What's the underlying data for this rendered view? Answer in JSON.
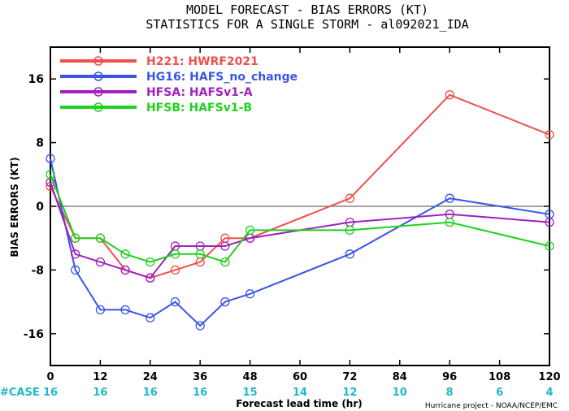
{
  "chart_data": {
    "type": "line",
    "title": "MODEL FORECAST - BIAS ERRORS (KT)",
    "subtitle": "STATISTICS FOR A SINGLE STORM - al092021_IDA",
    "xlabel": "Forecast lead time (hr)",
    "ylabel": "BIAS ERRORS (KT)",
    "xlim": [
      0,
      120
    ],
    "ylim": [
      -20,
      20
    ],
    "x_ticks": [
      0,
      12,
      24,
      36,
      48,
      60,
      72,
      84,
      96,
      108,
      120
    ],
    "y_ticks": [
      -16,
      -8,
      0,
      8,
      16
    ],
    "grid": false,
    "zero_line": true,
    "legend_position": "top-left",
    "case_label": "#CASE",
    "case_counts": [
      {
        "x": 0,
        "n": "16"
      },
      {
        "x": 12,
        "n": "16"
      },
      {
        "x": 24,
        "n": "16"
      },
      {
        "x": 36,
        "n": "16"
      },
      {
        "x": 48,
        "n": "15"
      },
      {
        "x": 60,
        "n": "14"
      },
      {
        "x": 72,
        "n": "12"
      },
      {
        "x": 84,
        "n": "10"
      },
      {
        "x": 96,
        "n": "8"
      },
      {
        "x": 108,
        "n": "6"
      },
      {
        "x": 120,
        "n": "4"
      }
    ],
    "credit": "Hurricane project - NOAA/NCEP/EMC",
    "series": [
      {
        "name": "H221: HWRF2021",
        "color": "#f0504a",
        "points": [
          [
            0,
            2.5
          ],
          [
            6,
            -4
          ],
          [
            12,
            -4
          ],
          [
            18,
            -8
          ],
          [
            24,
            -9
          ],
          [
            30,
            -8
          ],
          [
            36,
            -7
          ],
          [
            42,
            -4
          ],
          [
            48,
            -4
          ],
          [
            72,
            1
          ],
          [
            96,
            14
          ],
          [
            120,
            9
          ]
        ]
      },
      {
        "name": "HG16: HAFS_no_change",
        "color": "#3a55e6",
        "points": [
          [
            0,
            6
          ],
          [
            6,
            -8
          ],
          [
            12,
            -13
          ],
          [
            18,
            -13
          ],
          [
            24,
            -14
          ],
          [
            30,
            -12
          ],
          [
            36,
            -15
          ],
          [
            42,
            -12
          ],
          [
            48,
            -11
          ],
          [
            72,
            -6
          ],
          [
            96,
            1
          ],
          [
            120,
            -1
          ]
        ]
      },
      {
        "name": "HFSA: HAFSv1-A",
        "color": "#a020c0",
        "points": [
          [
            0,
            3
          ],
          [
            6,
            -6
          ],
          [
            12,
            -7
          ],
          [
            18,
            -8
          ],
          [
            24,
            -9
          ],
          [
            30,
            -5
          ],
          [
            36,
            -5
          ],
          [
            42,
            -5
          ],
          [
            48,
            -4
          ],
          [
            72,
            -2
          ],
          [
            96,
            -1
          ],
          [
            120,
            -2
          ]
        ]
      },
      {
        "name": "HFSB: HAFSv1-B",
        "color": "#20d020",
        "points": [
          [
            0,
            4
          ],
          [
            6,
            -4
          ],
          [
            12,
            -4
          ],
          [
            18,
            -6
          ],
          [
            24,
            -7
          ],
          [
            30,
            -6
          ],
          [
            36,
            -6
          ],
          [
            42,
            -7
          ],
          [
            48,
            -3
          ],
          [
            72,
            -3
          ],
          [
            96,
            -2
          ],
          [
            120,
            -5
          ]
        ]
      }
    ],
    "colors": {
      "axis": "#000000",
      "zero_line": "#444444",
      "case_text": "#1fb8c8"
    }
  }
}
